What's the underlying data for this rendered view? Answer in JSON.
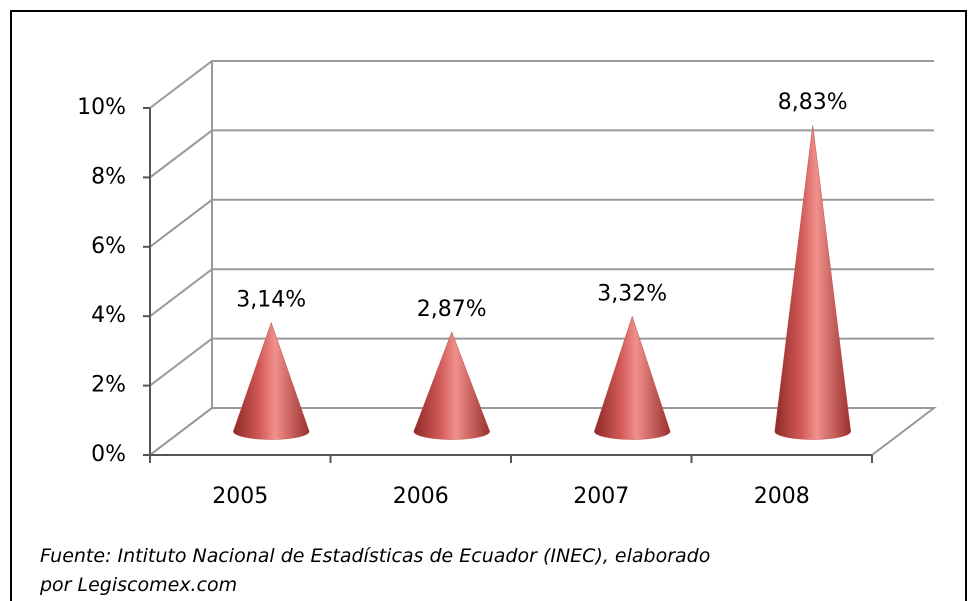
{
  "chart_data": {
    "type": "cone",
    "categories": [
      "2005",
      "2006",
      "2007",
      "2008"
    ],
    "values": [
      3.14,
      2.87,
      3.32,
      8.83
    ],
    "value_labels": [
      "3,14%",
      "2,87%",
      "3,32%",
      "8,83%"
    ],
    "color": "#c0504d",
    "ylim": [
      0,
      10
    ],
    "yticks": [
      {
        "value": 0,
        "label": "0%"
      },
      {
        "value": 2,
        "label": "2%"
      },
      {
        "value": 4,
        "label": "4%"
      },
      {
        "value": 6,
        "label": "6%"
      },
      {
        "value": 8,
        "label": "8%"
      },
      {
        "value": 10,
        "label": "10%"
      }
    ],
    "grid": true,
    "source": [
      "Fuente: Intituto Nacional de Estadísticas de Ecuador (INEC), elaborado",
      "por Legiscomex.com"
    ]
  }
}
